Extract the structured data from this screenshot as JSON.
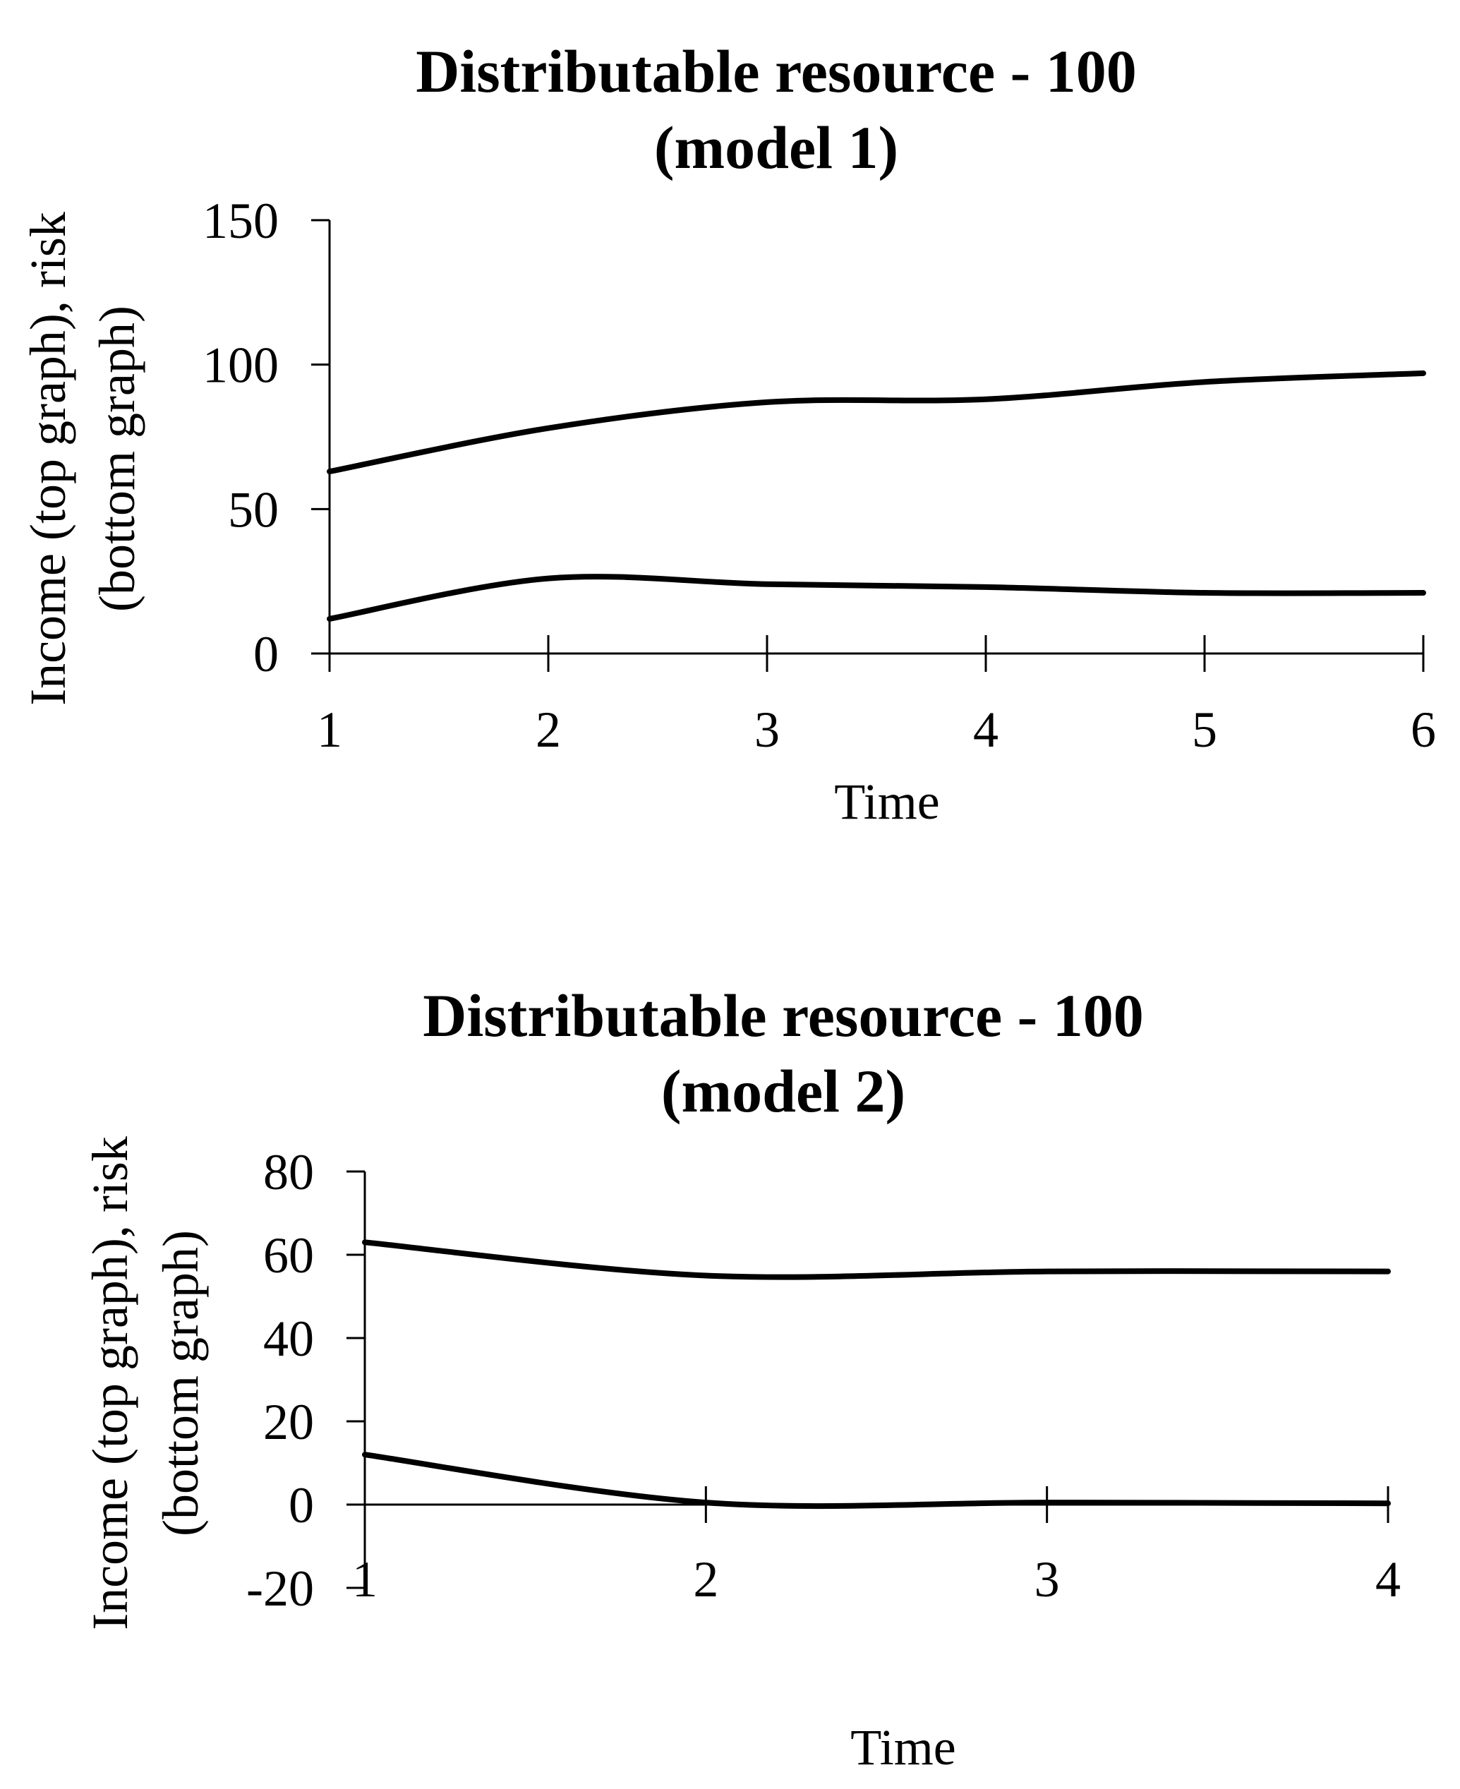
{
  "chart_data": [
    {
      "type": "line",
      "title_line1": "Distributable resource - 100",
      "title_line2": "(model 1)",
      "xlabel": "Time",
      "ylabel_line1": "Income (top graph), risk",
      "ylabel_line2": "(bottom graph)",
      "x": [
        1,
        2,
        3,
        4,
        5,
        6
      ],
      "xlim": [
        1,
        6
      ],
      "ylim": [
        0,
        150
      ],
      "yticks": [
        0,
        50,
        100,
        150
      ],
      "xticks": [
        1,
        2,
        3,
        4,
        5,
        6
      ],
      "series": [
        {
          "name": "Income",
          "values": [
            63,
            78,
            87,
            88,
            94,
            97
          ]
        },
        {
          "name": "Risk",
          "values": [
            12,
            26,
            24,
            23,
            21,
            21
          ]
        }
      ],
      "color": "#000000"
    },
    {
      "type": "line",
      "title_line1": "Distributable resource - 100",
      "title_line2": "(model 2)",
      "xlabel": "Time",
      "ylabel_line1": "Income (top graph), risk",
      "ylabel_line2": "(bottom graph)",
      "x": [
        1,
        2,
        3,
        4
      ],
      "xlim": [
        1,
        4
      ],
      "ylim": [
        -20,
        80
      ],
      "yticks": [
        -20,
        0,
        20,
        40,
        60,
        80
      ],
      "xticks": [
        1,
        2,
        3,
        4
      ],
      "series": [
        {
          "name": "Income",
          "values": [
            63,
            55,
            56,
            56
          ]
        },
        {
          "name": "Risk",
          "values": [
            12,
            0.5,
            0.5,
            0.3
          ]
        }
      ],
      "color": "#000000"
    }
  ]
}
